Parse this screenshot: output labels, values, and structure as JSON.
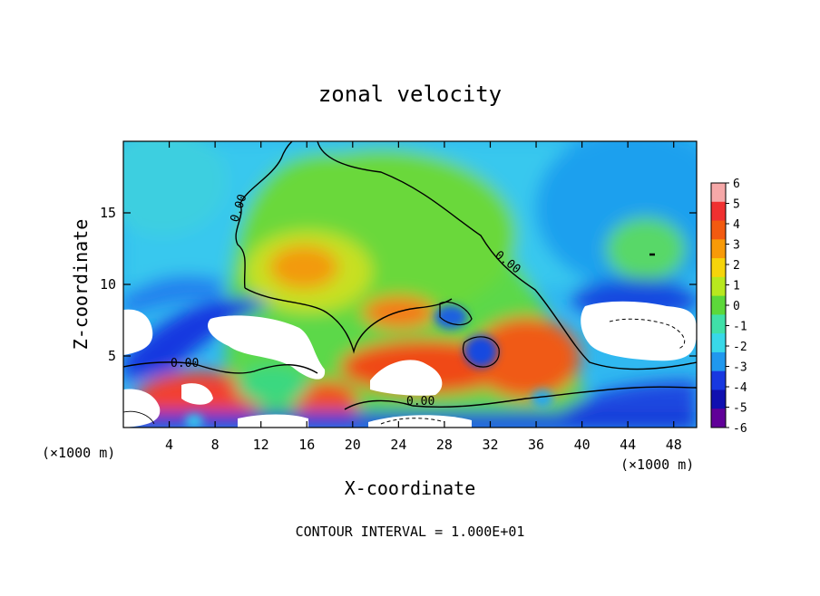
{
  "chart_data": {
    "type": "heatmap",
    "title": "zonal velocity",
    "xlabel": "X-coordinate",
    "ylabel": "Z-coordinate",
    "x_unit": "(×1000 m)",
    "xlim": [
      0,
      50
    ],
    "ylim": [
      0,
      20
    ],
    "x_ticks": [
      4,
      8,
      12,
      16,
      20,
      24,
      28,
      32,
      36,
      40,
      44,
      48
    ],
    "y_ticks": [
      5,
      10,
      15
    ],
    "colorbar": {
      "levels": [
        6,
        5,
        4,
        3,
        2,
        1,
        0,
        -1,
        -2,
        -3,
        -4,
        -5,
        -6
      ],
      "colors": [
        "#f6a8a8",
        "#f03030",
        "#f25a10",
        "#f89a08",
        "#f6d40a",
        "#b8e81e",
        "#5cd83a",
        "#40e0a8",
        "#38d8e8",
        "#2098ee",
        "#1838e0",
        "#1010b0",
        "#600098"
      ]
    },
    "contour_labels": [
      "0.00",
      "0.00",
      "0.00",
      "0.00"
    ],
    "footnote": "CONTOUR INTERVAL = 1.000E+01",
    "grid": false
  }
}
